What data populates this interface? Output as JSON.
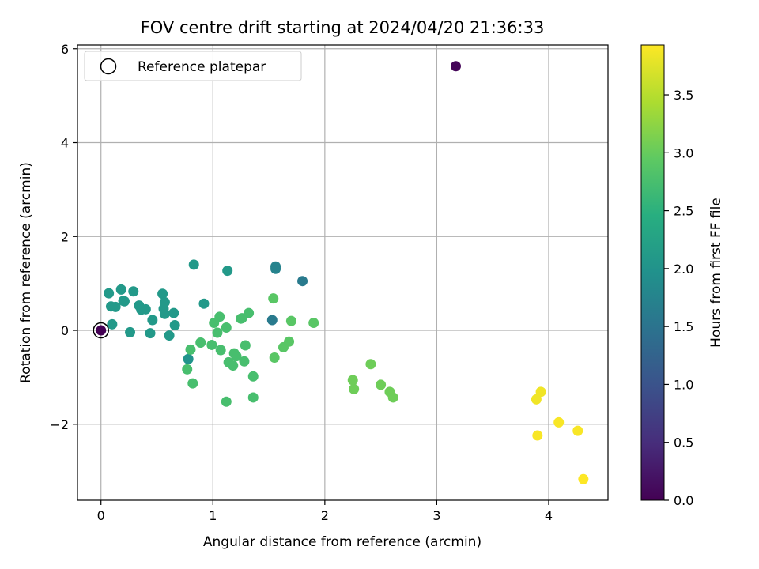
{
  "chart_data": {
    "type": "scatter",
    "title": "FOV centre drift starting at 2024/04/20 21:36:33",
    "xlabel": "Angular distance from reference (arcmin)",
    "ylabel": "Rotation from reference (arcmin)",
    "xlim": [
      -0.21,
      4.53
    ],
    "ylim": [
      -3.62,
      6.08
    ],
    "xticks": [
      0,
      1,
      2,
      3,
      4
    ],
    "xtick_labels": [
      "0",
      "1",
      "2",
      "3",
      "4"
    ],
    "yticks": [
      -2,
      0,
      2,
      4,
      6
    ],
    "ytick_labels": [
      "−2",
      "0",
      "2",
      "4",
      "6"
    ],
    "grid": true,
    "legend": {
      "placement": "upper-left",
      "entries": [
        "Reference platepar"
      ]
    },
    "colorbar": {
      "label": "Hours from first FF file",
      "colormap": "viridis",
      "range": [
        0,
        3.93
      ],
      "ticks": [
        0.0,
        0.5,
        1.0,
        1.5,
        2.0,
        2.5,
        3.0,
        3.5
      ],
      "tick_labels": [
        "0.0",
        "0.5",
        "1.0",
        "1.5",
        "2.0",
        "2.5",
        "3.0",
        "3.5"
      ]
    },
    "reference_point": {
      "x": 0,
      "y": 0
    },
    "points": [
      {
        "x": 0.0,
        "y": 0.0,
        "t": 0.0
      },
      {
        "x": 3.17,
        "y": 5.63,
        "t": 0.05
      },
      {
        "x": 1.8,
        "y": 1.05,
        "t": 1.6
      },
      {
        "x": 1.53,
        "y": 0.22,
        "t": 1.6
      },
      {
        "x": 1.56,
        "y": 1.36,
        "t": 1.75
      },
      {
        "x": 1.56,
        "y": 1.31,
        "t": 1.75
      },
      {
        "x": 0.78,
        "y": -0.61,
        "t": 2.0
      },
      {
        "x": 0.07,
        "y": 0.79,
        "t": 2.1
      },
      {
        "x": 0.09,
        "y": 0.51,
        "t": 2.1
      },
      {
        "x": 0.13,
        "y": 0.5,
        "t": 2.1
      },
      {
        "x": 0.1,
        "y": 0.13,
        "t": 2.1
      },
      {
        "x": 0.18,
        "y": 0.87,
        "t": 2.1
      },
      {
        "x": 0.2,
        "y": 0.63,
        "t": 2.1
      },
      {
        "x": 0.21,
        "y": 0.62,
        "t": 2.1
      },
      {
        "x": 0.26,
        "y": -0.04,
        "t": 2.1
      },
      {
        "x": 0.29,
        "y": 0.83,
        "t": 2.1
      },
      {
        "x": 0.34,
        "y": 0.53,
        "t": 2.1
      },
      {
        "x": 0.36,
        "y": 0.44,
        "t": 2.1
      },
      {
        "x": 0.4,
        "y": 0.45,
        "t": 2.1
      },
      {
        "x": 0.44,
        "y": -0.06,
        "t": 2.1
      },
      {
        "x": 0.46,
        "y": 0.22,
        "t": 2.1
      },
      {
        "x": 0.55,
        "y": 0.78,
        "t": 2.1
      },
      {
        "x": 0.56,
        "y": 0.46,
        "t": 2.1
      },
      {
        "x": 0.57,
        "y": 0.35,
        "t": 2.1
      },
      {
        "x": 0.57,
        "y": 0.6,
        "t": 2.1
      },
      {
        "x": 0.61,
        "y": -0.11,
        "t": 2.1
      },
      {
        "x": 0.65,
        "y": 0.37,
        "t": 2.1
      },
      {
        "x": 0.66,
        "y": 0.11,
        "t": 2.1
      },
      {
        "x": 0.83,
        "y": 1.4,
        "t": 2.1
      },
      {
        "x": 0.92,
        "y": 0.57,
        "t": 2.1
      },
      {
        "x": 1.13,
        "y": 1.27,
        "t": 2.1
      },
      {
        "x": 0.77,
        "y": -0.83,
        "t": 2.75
      },
      {
        "x": 0.8,
        "y": -0.41,
        "t": 2.75
      },
      {
        "x": 0.82,
        "y": -1.13,
        "t": 2.75
      },
      {
        "x": 0.89,
        "y": -0.26,
        "t": 2.75
      },
      {
        "x": 0.99,
        "y": -0.31,
        "t": 2.75
      },
      {
        "x": 1.01,
        "y": 0.16,
        "t": 2.75
      },
      {
        "x": 1.04,
        "y": -0.05,
        "t": 2.75
      },
      {
        "x": 1.06,
        "y": 0.29,
        "t": 2.75
      },
      {
        "x": 1.07,
        "y": -0.42,
        "t": 2.75
      },
      {
        "x": 1.12,
        "y": 0.06,
        "t": 2.75
      },
      {
        "x": 1.12,
        "y": -1.52,
        "t": 2.75
      },
      {
        "x": 1.14,
        "y": -0.68,
        "t": 2.75
      },
      {
        "x": 1.18,
        "y": -0.75,
        "t": 2.75
      },
      {
        "x": 1.19,
        "y": -0.49,
        "t": 2.75
      },
      {
        "x": 1.21,
        "y": -0.55,
        "t": 2.75
      },
      {
        "x": 1.25,
        "y": 0.25,
        "t": 2.75
      },
      {
        "x": 1.26,
        "y": 0.26,
        "t": 2.75
      },
      {
        "x": 1.28,
        "y": -0.66,
        "t": 2.75
      },
      {
        "x": 1.29,
        "y": -0.32,
        "t": 2.75
      },
      {
        "x": 1.32,
        "y": 0.37,
        "t": 2.75
      },
      {
        "x": 1.36,
        "y": -0.98,
        "t": 2.75
      },
      {
        "x": 1.36,
        "y": -1.43,
        "t": 2.75
      },
      {
        "x": 1.54,
        "y": 0.68,
        "t": 2.9
      },
      {
        "x": 1.55,
        "y": -0.58,
        "t": 2.9
      },
      {
        "x": 1.63,
        "y": -0.36,
        "t": 2.9
      },
      {
        "x": 1.68,
        "y": -0.24,
        "t": 2.9
      },
      {
        "x": 1.7,
        "y": 0.2,
        "t": 2.9
      },
      {
        "x": 1.9,
        "y": 0.16,
        "t": 2.9
      },
      {
        "x": 2.25,
        "y": -1.06,
        "t": 3.05
      },
      {
        "x": 2.26,
        "y": -1.25,
        "t": 3.05
      },
      {
        "x": 2.41,
        "y": -0.72,
        "t": 3.05
      },
      {
        "x": 2.5,
        "y": -1.16,
        "t": 3.05
      },
      {
        "x": 2.58,
        "y": -1.31,
        "t": 3.05
      },
      {
        "x": 2.61,
        "y": -1.43,
        "t": 3.05
      },
      {
        "x": 3.89,
        "y": -1.47,
        "t": 3.85
      },
      {
        "x": 3.93,
        "y": -1.31,
        "t": 3.85
      },
      {
        "x": 3.9,
        "y": -2.24,
        "t": 3.9
      },
      {
        "x": 4.09,
        "y": -1.96,
        "t": 3.9
      },
      {
        "x": 4.26,
        "y": -2.14,
        "t": 3.9
      },
      {
        "x": 4.31,
        "y": -3.17,
        "t": 3.93
      }
    ]
  }
}
